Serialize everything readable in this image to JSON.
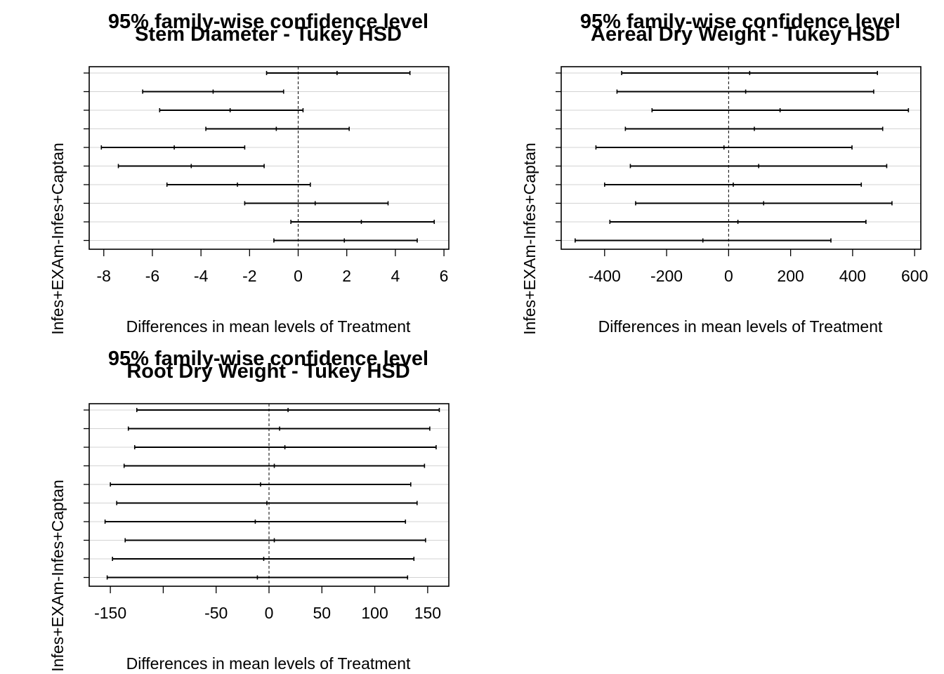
{
  "chart_data": [
    {
      "type": "errorbar",
      "title_line1": "95% family-wise confidence level",
      "title_line2": "Stem Diameter - Tukey HSD",
      "xlabel": "Differences in mean levels of Treatment",
      "ylabel": "Infes+EXAm-Infes+Captan",
      "xlim": [
        -8.6,
        6.2
      ],
      "xticks": [
        -8,
        -6,
        -4,
        -2,
        0,
        2,
        4,
        6
      ],
      "xtick_labels": [
        "-8",
        "-6",
        "-4",
        "-2",
        "0",
        "2",
        "4",
        "6"
      ],
      "grid": "horizontal",
      "reference_line": 0,
      "intervals": [
        {
          "lwr": -1.3,
          "diff": 1.6,
          "upr": 4.6
        },
        {
          "lwr": -6.4,
          "diff": -3.5,
          "upr": -0.6
        },
        {
          "lwr": -5.7,
          "diff": -2.8,
          "upr": 0.2
        },
        {
          "lwr": -3.8,
          "diff": -0.9,
          "upr": 2.1
        },
        {
          "lwr": -8.1,
          "diff": -5.1,
          "upr": -2.2
        },
        {
          "lwr": -7.4,
          "diff": -4.4,
          "upr": -1.4
        },
        {
          "lwr": -5.4,
          "diff": -2.5,
          "upr": 0.5
        },
        {
          "lwr": -2.2,
          "diff": 0.7,
          "upr": 3.7
        },
        {
          "lwr": -0.3,
          "diff": 2.6,
          "upr": 5.6
        },
        {
          "lwr": -1.0,
          "diff": 1.9,
          "upr": 4.9
        }
      ]
    },
    {
      "type": "errorbar",
      "title_line1": "95% family-wise confidence level",
      "title_line2": "Aereal Dry Weight - Tukey HSD",
      "xlabel": "Differences in mean levels of Treatment",
      "ylabel": "Infes+EXAm-Infes+Captan",
      "xlim": [
        -540,
        620
      ],
      "xticks": [
        -400,
        -200,
        0,
        200,
        400,
        600
      ],
      "xtick_labels": [
        "-400",
        "-200",
        "0",
        "200",
        "400",
        "600"
      ],
      "grid": "horizontal",
      "reference_line": 0,
      "intervals": [
        {
          "lwr": -345,
          "diff": 68,
          "upr": 480
        },
        {
          "lwr": -360,
          "diff": 55,
          "upr": 468
        },
        {
          "lwr": -247,
          "diff": 166,
          "upr": 580
        },
        {
          "lwr": -333,
          "diff": 83,
          "upr": 497
        },
        {
          "lwr": -428,
          "diff": -15,
          "upr": 398
        },
        {
          "lwr": -317,
          "diff": 97,
          "upr": 510
        },
        {
          "lwr": -400,
          "diff": 15,
          "upr": 428
        },
        {
          "lwr": -300,
          "diff": 113,
          "upr": 527
        },
        {
          "lwr": -383,
          "diff": 30,
          "upr": 443
        },
        {
          "lwr": -495,
          "diff": -83,
          "upr": 330
        }
      ]
    },
    {
      "type": "errorbar",
      "title_line1": "95% family-wise confidence level",
      "title_line2": "Root Dry Weight - Tukey HSD",
      "xlabel": "Differences in mean levels of Treatment",
      "ylabel": "Infes+EXAm-Infes+Captan",
      "xlim": [
        -170,
        170
      ],
      "xticks": [
        -150,
        -100,
        -50,
        0,
        50,
        100,
        150
      ],
      "xtick_labels": [
        "-150",
        "",
        "-50",
        "0",
        "50",
        "100",
        "150"
      ],
      "grid": "horizontal",
      "reference_line": 0,
      "intervals": [
        {
          "lwr": -125,
          "diff": 18,
          "upr": 161
        },
        {
          "lwr": -133,
          "diff": 10,
          "upr": 152
        },
        {
          "lwr": -127,
          "diff": 15,
          "upr": 158
        },
        {
          "lwr": -137,
          "diff": 5,
          "upr": 147
        },
        {
          "lwr": -150,
          "diff": -8,
          "upr": 134
        },
        {
          "lwr": -144,
          "diff": -2,
          "upr": 140
        },
        {
          "lwr": -155,
          "diff": -13,
          "upr": 129
        },
        {
          "lwr": -136,
          "diff": 5,
          "upr": 148
        },
        {
          "lwr": -148,
          "diff": -5,
          "upr": 137
        },
        {
          "lwr": -153,
          "diff": -11,
          "upr": 131
        }
      ]
    }
  ]
}
